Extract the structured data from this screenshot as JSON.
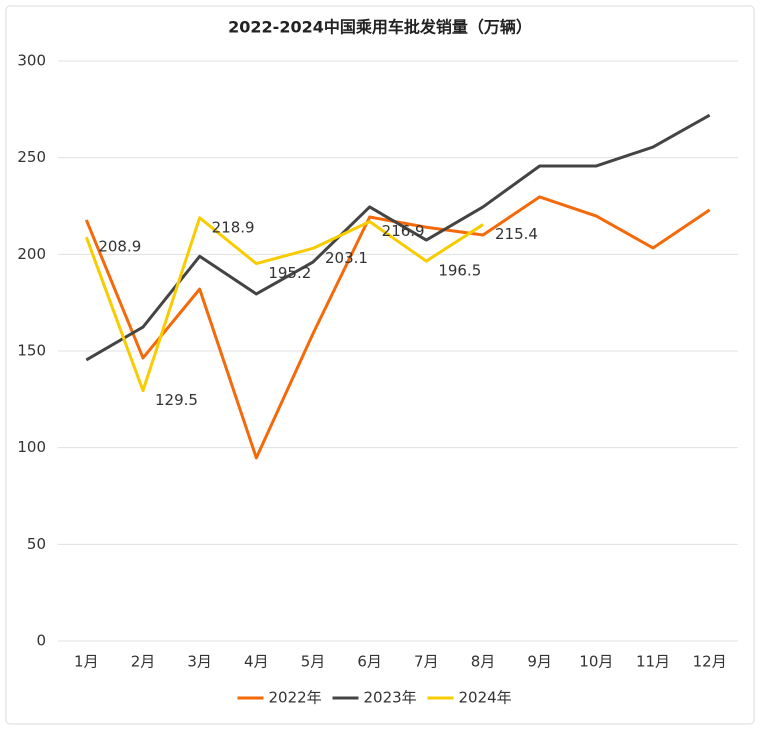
{
  "chart_data": {
    "type": "line",
    "title": "2022-2024中国乘用车批发销量（万辆）",
    "categories": [
      "1月",
      "2月",
      "3月",
      "4月",
      "5月",
      "6月",
      "7月",
      "8月",
      "9月",
      "10月",
      "11月",
      "12月"
    ],
    "series": [
      {
        "name": "2022年",
        "color": "#f46a0a",
        "values": [
          217.8,
          146.4,
          182,
          94.7,
          159,
          219.3,
          214,
          210,
          229.7,
          219.8,
          203.3,
          223
        ]
      },
      {
        "name": "2023年",
        "color": "#444444",
        "values": [
          145.4,
          162.4,
          199,
          179.5,
          196,
          224.5,
          207.4,
          224.5,
          245.7,
          245.7,
          255.5,
          272
        ]
      },
      {
        "name": "2024年",
        "color": "#f7cc00",
        "values": [
          208.9,
          129.5,
          218.9,
          195.2,
          203.1,
          216.9,
          196.5,
          215.4,
          null,
          null,
          null,
          null
        ],
        "data_labels": true
      }
    ],
    "ylim": [
      0,
      300
    ],
    "yticks": [
      0,
      50,
      100,
      150,
      200,
      250,
      300
    ],
    "grid": true,
    "legend": "bottom"
  }
}
